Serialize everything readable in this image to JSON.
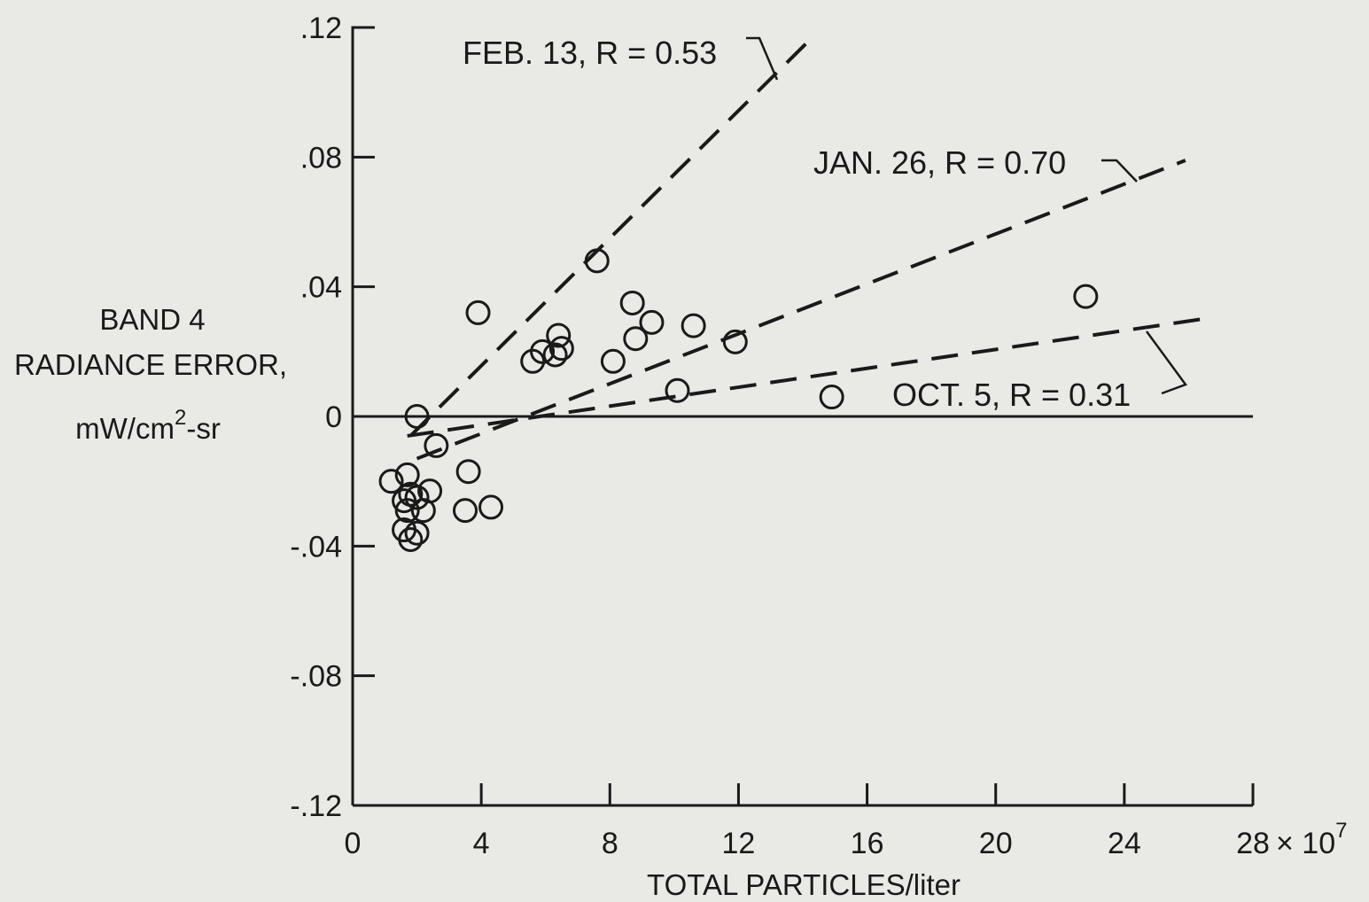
{
  "chart_data": {
    "type": "scatter",
    "title": "",
    "xlabel": "TOTAL PARTICLES/liter",
    "x_multiplier": "× 10",
    "x_multiplier_exp": "7",
    "ylabel_lines": [
      "BAND 4",
      "RADIANCE ERROR,",
      "mW/cm",
      "-sr"
    ],
    "ylabel_sup": "2",
    "xlim": [
      0,
      28
    ],
    "ylim": [
      -0.12,
      0.12
    ],
    "x_ticks": [
      0,
      4,
      8,
      12,
      16,
      20,
      24,
      28
    ],
    "x_tick_labels": [
      "0",
      "4",
      "8",
      "12",
      "16",
      "20",
      "24",
      "28"
    ],
    "y_ticks": [
      0.12,
      0.08,
      0.04,
      0,
      -0.04,
      -0.08,
      -0.12
    ],
    "y_tick_labels": [
      ".12",
      ".08",
      ".04",
      "0",
      "-.04",
      "-.08",
      "-.12"
    ],
    "grid": false,
    "zero_line": true,
    "points": [
      [
        1.2,
        -0.02
      ],
      [
        1.6,
        -0.026
      ],
      [
        1.7,
        -0.029
      ],
      [
        1.6,
        -0.035
      ],
      [
        1.8,
        -0.038
      ],
      [
        1.7,
        -0.018
      ],
      [
        1.8,
        -0.024
      ],
      [
        2.0,
        -0.025
      ],
      [
        2.0,
        -0.036
      ],
      [
        2.2,
        -0.029
      ],
      [
        2.4,
        -0.023
      ],
      [
        2.0,
        0.0
      ],
      [
        2.6,
        -0.009
      ],
      [
        3.6,
        -0.017
      ],
      [
        3.5,
        -0.029
      ],
      [
        4.3,
        -0.028
      ],
      [
        3.9,
        0.032
      ],
      [
        5.6,
        0.017
      ],
      [
        5.9,
        0.02
      ],
      [
        6.3,
        0.019
      ],
      [
        6.4,
        0.025
      ],
      [
        6.5,
        0.021
      ],
      [
        7.6,
        0.048
      ],
      [
        8.1,
        0.017
      ],
      [
        8.7,
        0.035
      ],
      [
        8.8,
        0.024
      ],
      [
        9.3,
        0.029
      ],
      [
        10.1,
        0.008
      ],
      [
        10.6,
        0.028
      ],
      [
        11.9,
        0.023
      ],
      [
        14.9,
        0.006
      ],
      [
        22.8,
        0.037
      ]
    ],
    "series": [
      {
        "name": "FEB. 13, R = 0.53",
        "x": [
          1.8,
          14.1
        ],
        "y": [
          -0.006,
          0.115
        ]
      },
      {
        "name": "JAN. 26, R = 0.70",
        "x": [
          2.0,
          25.9
        ],
        "y": [
          -0.013,
          0.079
        ]
      },
      {
        "name": "OCT. 5, R = 0.31",
        "x": [
          1.7,
          26.4
        ],
        "y": [
          -0.006,
          0.03
        ]
      }
    ]
  }
}
